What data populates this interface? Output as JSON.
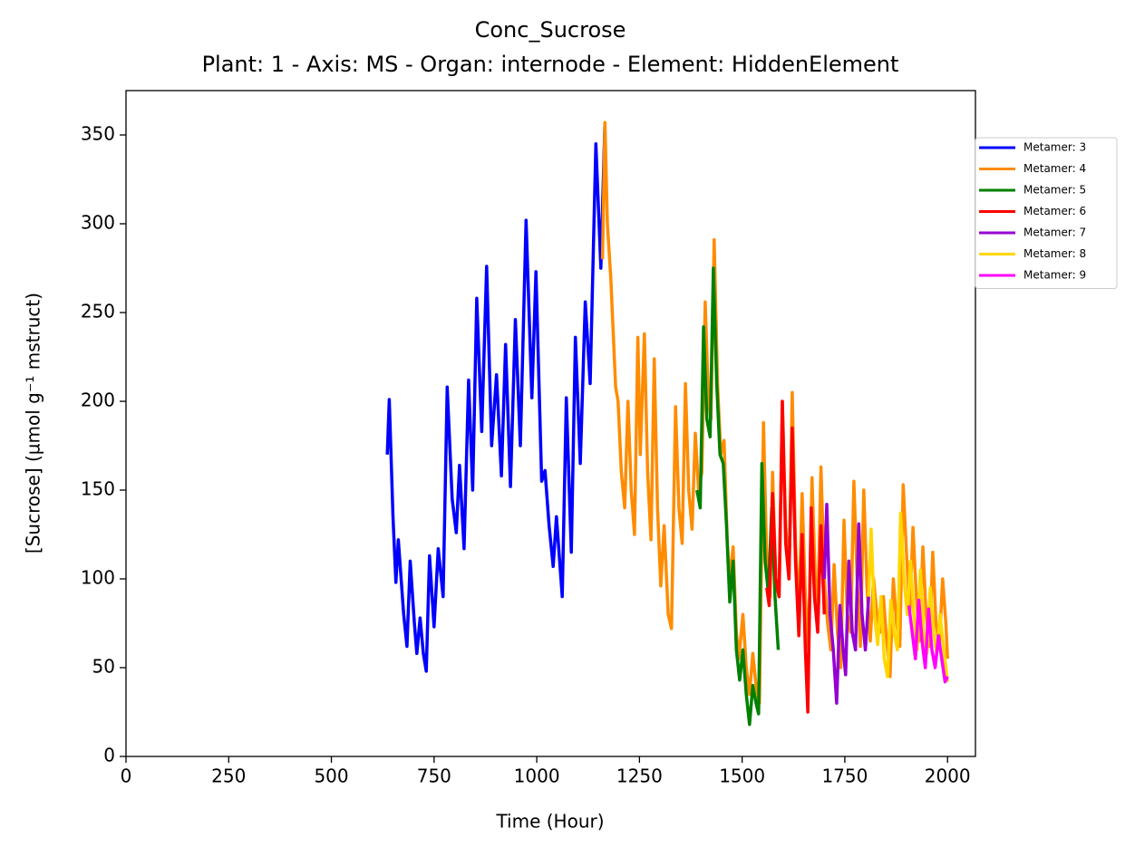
{
  "chart_data": {
    "type": "line",
    "title": "Conc_Sucrose",
    "subtitle": "Plant: 1 - Axis: MS - Organ: internode - Element: HiddenElement",
    "x_label": "Time (Hour)",
    "y_label": "[Sucrose] (µmol g⁻¹ mstruct)",
    "xlim": [
      0,
      2068
    ],
    "ylim": [
      0,
      375
    ],
    "xticks": [
      0,
      250,
      500,
      750,
      1000,
      1250,
      1500,
      1750,
      2000
    ],
    "yticks": [
      0,
      50,
      100,
      150,
      200,
      250,
      300,
      350
    ],
    "legend": "outside-right",
    "series": [
      {
        "name": "Metamer: 3",
        "color": "#0000ff",
        "x": [
          636,
          641,
          650,
          657,
          663,
          676,
          684,
          692,
          702,
          708,
          716,
          724,
          731,
          739,
          750,
          760,
          772,
          782,
          794,
          804,
          812,
          823,
          834,
          844,
          854,
          866,
          878,
          890,
          902,
          914,
          924,
          936,
          948,
          960,
          974,
          988,
          998,
          1012,
          1020,
          1030,
          1040,
          1048,
          1062,
          1072,
          1084,
          1094,
          1106,
          1118,
          1130,
          1144,
          1156,
          1166
        ],
        "values": [
          170,
          201,
          135,
          98,
          122,
          80,
          62,
          110,
          75,
          58,
          78,
          58,
          48,
          113,
          73,
          117,
          90,
          208,
          145,
          126,
          164,
          117,
          212,
          150,
          258,
          183,
          276,
          175,
          215,
          158,
          232,
          152,
          246,
          175,
          302,
          202,
          273,
          155,
          161,
          130,
          107,
          135,
          90,
          202,
          115,
          236,
          165,
          256,
          210,
          345,
          275,
          357
        ]
      },
      {
        "name": "Metamer: 4",
        "color": "#ff8c00",
        "x": [
          1160,
          1166,
          1172,
          1180,
          1192,
          1198,
          1206,
          1214,
          1222,
          1230,
          1238,
          1246,
          1252,
          1262,
          1270,
          1278,
          1286,
          1294,
          1302,
          1310,
          1320,
          1328,
          1338,
          1346,
          1354,
          1362,
          1370,
          1378,
          1386,
          1394,
          1402,
          1410,
          1418,
          1424,
          1432,
          1440,
          1448,
          1456,
          1464,
          1470,
          1478,
          1486,
          1492,
          1502,
          1510,
          1518,
          1526,
          1534,
          1542,
          1552,
          1560,
          1568,
          1574,
          1582,
          1590,
          1598,
          1606,
          1614,
          1622,
          1630,
          1638,
          1646,
          1654,
          1662,
          1670,
          1678,
          1684,
          1692,
          1700,
          1708,
          1716,
          1724,
          1732,
          1740,
          1748,
          1756,
          1764,
          1772,
          1780,
          1788,
          1796,
          1804,
          1812,
          1820,
          1828,
          1836,
          1844,
          1852,
          1860,
          1868,
          1876,
          1884,
          1892,
          1900,
          1908,
          1916,
          1924,
          1932,
          1940,
          1948,
          1956,
          1964,
          1972,
          1980,
          1988,
          1996,
          2000
        ],
        "values": [
          280,
          357,
          300,
          270,
          208,
          200,
          160,
          140,
          200,
          150,
          125,
          236,
          170,
          238,
          160,
          122,
          224,
          140,
          96,
          130,
          80,
          72,
          197,
          140,
          120,
          210,
          150,
          128,
          182,
          150,
          160,
          256,
          200,
          190,
          291,
          210,
          170,
          178,
          120,
          100,
          118,
          70,
          55,
          80,
          50,
          35,
          58,
          40,
          30,
          188,
          110,
          90,
          160,
          100,
          90,
          200,
          130,
          100,
          205,
          120,
          80,
          148,
          90,
          60,
          157,
          100,
          80,
          163,
          100,
          75,
          60,
          108,
          70,
          50,
          133,
          80,
          70,
          155,
          100,
          62,
          150,
          95,
          65,
          100,
          80,
          70,
          90,
          65,
          45,
          100,
          75,
          62,
          153,
          115,
          80,
          129,
          90,
          65,
          118,
          80,
          62,
          115,
          75,
          62,
          100,
          75,
          55
        ]
      },
      {
        "name": "Metamer: 5",
        "color": "#008000",
        "x": [
          1390,
          1398,
          1406,
          1414,
          1422,
          1430,
          1438,
          1446,
          1454,
          1462,
          1470,
          1478,
          1486,
          1494,
          1502,
          1510,
          1518,
          1526,
          1534,
          1540,
          1548,
          1556,
          1564,
          1572,
          1580,
          1588
        ],
        "values": [
          150,
          140,
          242,
          190,
          180,
          275,
          210,
          170,
          165,
          130,
          87,
          110,
          60,
          43,
          60,
          35,
          18,
          40,
          30,
          24,
          165,
          110,
          92,
          140,
          90,
          60
        ]
      },
      {
        "name": "Metamer: 6",
        "color": "#ff0000",
        "x": [
          1560,
          1566,
          1574,
          1582,
          1590,
          1598,
          1606,
          1614,
          1622,
          1630,
          1638,
          1646,
          1654,
          1660,
          1668,
          1676,
          1684,
          1692,
          1700
        ],
        "values": [
          95,
          85,
          148,
          100,
          90,
          200,
          120,
          100,
          185,
          110,
          68,
          125,
          60,
          25,
          140,
          90,
          70,
          130,
          80
        ]
      },
      {
        "name": "Metamer: 7",
        "color": "#9400d3",
        "x": [
          1700,
          1706,
          1714,
          1722,
          1730,
          1738,
          1746,
          1752,
          1760,
          1768,
          1776,
          1784,
          1792,
          1800,
          1808
        ],
        "values": [
          100,
          142,
          80,
          60,
          30,
          85,
          60,
          46,
          110,
          70,
          60,
          131,
          80,
          60,
          90
        ]
      },
      {
        "name": "Metamer: 8",
        "color": "#ffd700",
        "x": [
          1808,
          1814,
          1822,
          1830,
          1838,
          1846,
          1854,
          1862,
          1870,
          1878,
          1886,
          1894,
          1902,
          1910,
          1918,
          1926,
          1934,
          1942,
          1950,
          1958,
          1966,
          1974,
          1982,
          1990,
          2000
        ],
        "values": [
          90,
          128,
          80,
          63,
          90,
          55,
          45,
          88,
          70,
          60,
          137,
          100,
          80,
          110,
          80,
          60,
          105,
          70,
          58,
          95,
          70,
          58,
          80,
          62,
          42
        ]
      },
      {
        "name": "Metamer: 9",
        "color": "#ff00ff",
        "x": [
          1906,
          1914,
          1922,
          1930,
          1938,
          1946,
          1954,
          1962,
          1970,
          1978,
          1986,
          1994,
          2000
        ],
        "values": [
          85,
          70,
          55,
          88,
          65,
          50,
          83,
          60,
          50,
          68,
          55,
          42,
          45
        ]
      }
    ]
  }
}
